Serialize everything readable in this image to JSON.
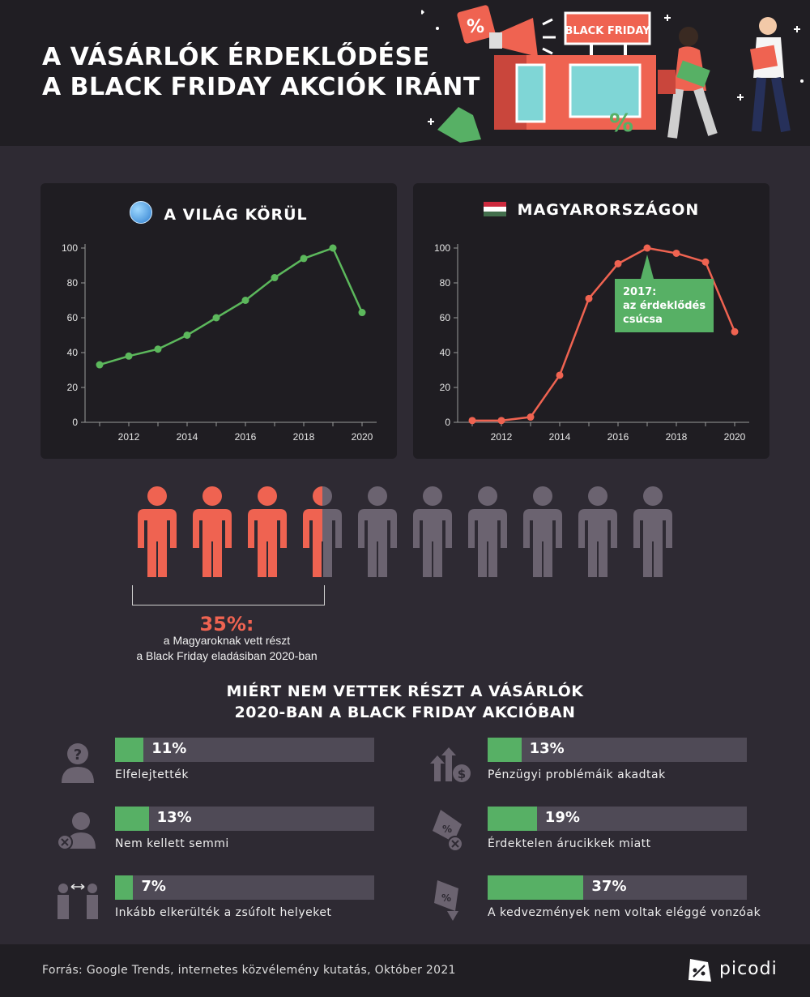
{
  "header": {
    "title_line1": "A VÁSÁRLÓK ÉRDEKLŐDÉSE",
    "title_line2": "A BLACK FRIDAY AKCIÓK IRÁNT",
    "illustration": {
      "sign_text": "BLACK FRIDAY",
      "percent_glyph": "%"
    }
  },
  "colors": {
    "world_line": "#5cb85c",
    "hungary_line": "#ef6351",
    "bar_fill": "#57b065",
    "bar_track": "#4f4a56",
    "people_active": "#ef6351",
    "people_inactive": "#6b6370",
    "callout": "#57b065"
  },
  "chart_data": [
    {
      "type": "line",
      "title": "A VILÁG KÖRÜL",
      "title_icon": "globe-icon",
      "x": [
        2011,
        2012,
        2013,
        2014,
        2015,
        2016,
        2017,
        2018,
        2019,
        2020
      ],
      "series": [
        {
          "values": [
            33,
            38,
            42,
            50,
            60,
            70,
            83,
            94,
            100,
            63
          ]
        }
      ],
      "x_ticks": [
        2012,
        2014,
        2016,
        2018,
        2020
      ],
      "y_ticks": [
        0,
        20,
        40,
        60,
        80,
        100
      ],
      "ylim": [
        0,
        100
      ],
      "xlim": [
        2010.5,
        2020.5
      ],
      "grid": false,
      "xlabel": "",
      "ylabel": ""
    },
    {
      "type": "line",
      "title": "MAGYARORSZÁGON",
      "title_icon": "hungarian-flag-icon",
      "x": [
        2011,
        2012,
        2013,
        2014,
        2015,
        2016,
        2017,
        2018,
        2019,
        2020
      ],
      "series": [
        {
          "values": [
            1,
            1,
            3,
            27,
            71,
            91,
            100,
            97,
            92,
            52
          ]
        }
      ],
      "x_ticks": [
        2012,
        2014,
        2016,
        2018,
        2020
      ],
      "y_ticks": [
        0,
        20,
        40,
        60,
        80,
        100
      ],
      "ylim": [
        0,
        100
      ],
      "xlim": [
        2010.5,
        2020.5
      ],
      "grid": false,
      "xlabel": "",
      "ylabel": "",
      "annotation": {
        "x": 2017,
        "y": 100,
        "text_lines": [
          "2017:",
          "az érdeklődés",
          "csúcsa"
        ]
      }
    },
    {
      "type": "bar",
      "title": "MIÉRT NEM VETTEK RÉSZT A VÁSÁRLÓK 2020-BAN A BLACK FRIDAY AKCIÓBAN",
      "categories": [
        "Elfelejtették",
        "Nem kellett semmi",
        "Inkább elkerülték a zsúfolt helyeket",
        "Pénzügyi problémáik akadtak",
        "Érdektelen árucikkek miatt",
        "A kedvezmények nem voltak eléggé vonzóak"
      ],
      "values": [
        11,
        13,
        7,
        13,
        19,
        37
      ],
      "value_labels": [
        "11%",
        "13%",
        "7%",
        "13%",
        "19%",
        "37%"
      ],
      "icons": [
        "question-person-icon",
        "person-x-icon",
        "distance-people-icon",
        "money-arrows-icon",
        "tag-x-icon",
        "falling-tag-icon"
      ],
      "ylim": [
        0,
        100
      ]
    }
  ],
  "participation": {
    "percent": 35,
    "percent_label": "35%:",
    "note_line1": "a Magyaroknak vett részt",
    "note_line2": "a Black Friday eladásiban 2020-ban",
    "total_figures": 10
  },
  "section": {
    "title_line1": "MIÉRT NEM VETTEK RÉSZT A VÁSÁRLÓK",
    "title_line2": "2020-BAN A BLACK FRIDAY AKCIÓBAN"
  },
  "footer": {
    "source": "Forrás: Google Trends, internetes közvélemény kutatás, Október 2021",
    "brand": "picodi"
  }
}
